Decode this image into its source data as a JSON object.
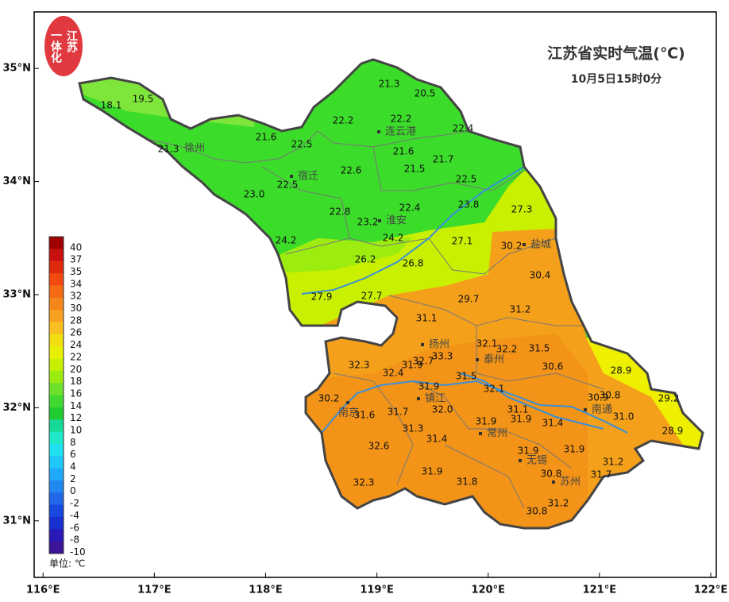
{
  "title": "江苏省实时气温(℃)",
  "subtitle": "10月5日15时0分",
  "logo": {
    "lines": [
      "江苏",
      "一体化"
    ]
  },
  "map": {
    "xlim": [
      115.92,
      122.05
    ],
    "ylim": [
      30.5,
      35.5
    ],
    "xticks": [
      {
        "value": 116,
        "label": "116°E"
      },
      {
        "value": 117,
        "label": "117°E"
      },
      {
        "value": 118,
        "label": "118°E"
      },
      {
        "value": 119,
        "label": "119°E"
      },
      {
        "value": 120,
        "label": "120°E"
      },
      {
        "value": 121,
        "label": "121°E"
      },
      {
        "value": 122,
        "label": "122°E"
      }
    ],
    "yticks": [
      {
        "value": 31,
        "label": "31°N"
      },
      {
        "value": 32,
        "label": "32°N"
      },
      {
        "value": 33,
        "label": "33°N"
      },
      {
        "value": 34,
        "label": "34°N"
      },
      {
        "value": 35,
        "label": "35°N"
      }
    ]
  },
  "legend": {
    "unit": "单位: ℃",
    "ticks": [
      40,
      37,
      35,
      34,
      32,
      30,
      28,
      26,
      24,
      22,
      20,
      18,
      16,
      14,
      12,
      10,
      8,
      6,
      4,
      2,
      0,
      -2,
      -4,
      -6,
      -8,
      -10
    ],
    "colors": [
      "#a00000",
      "#c81010",
      "#e02a10",
      "#f04a10",
      "#f56a12",
      "#f6861a",
      "#f8a020",
      "#f8bf20",
      "#f2df10",
      "#e6f000",
      "#c7f000",
      "#9cec10",
      "#6ee22a",
      "#40da30",
      "#20cc30",
      "#18d898",
      "#20e8c8",
      "#20e0f0",
      "#20c8f8",
      "#20a8f8",
      "#2088f0",
      "#2068e8",
      "#1848e0",
      "#1830d0",
      "#2818b8",
      "#3c1498"
    ]
  },
  "cities": [
    "徐州",
    "宿迁",
    "连云港",
    "淮安",
    "盐城",
    "扬州",
    "泰州",
    "南京",
    "镇江",
    "常州",
    "无锡",
    "苏州",
    "南通"
  ],
  "readings": [
    "18.1",
    "19.5",
    "21.3",
    "21.6",
    "22.5",
    "22.2",
    "22.2",
    "21.3",
    "20.5",
    "22.4",
    "21.6",
    "21.7",
    "21.5",
    "22.6",
    "22.5",
    "23.0",
    "22.5",
    "22.8",
    "23.2",
    "22.4",
    "23.8",
    "27.3",
    "24.2",
    "24.2",
    "27.1",
    "30.2",
    "26.2",
    "26.8",
    "30.4",
    "27.9",
    "27.7",
    "29.7",
    "31.2",
    "31.1",
    "32.1",
    "32.2",
    "31.5",
    "32.3",
    "31.9",
    "32.7",
    "33.3",
    "32.4",
    "30.6",
    "28.9",
    "31.5",
    "31.9",
    "32.1",
    "30.2",
    "30.9",
    "30.8",
    "29.2",
    "31.6",
    "31.7",
    "32.0",
    "31.1",
    "31.9",
    "31.9",
    "31.4",
    "31.0",
    "28.9",
    "31.3",
    "31.4",
    "32.6",
    "31.9",
    "31.9",
    "31.2",
    "30.8",
    "31.7",
    "32.3",
    "31.9",
    "31.8",
    "31.2",
    "30.8"
  ]
}
